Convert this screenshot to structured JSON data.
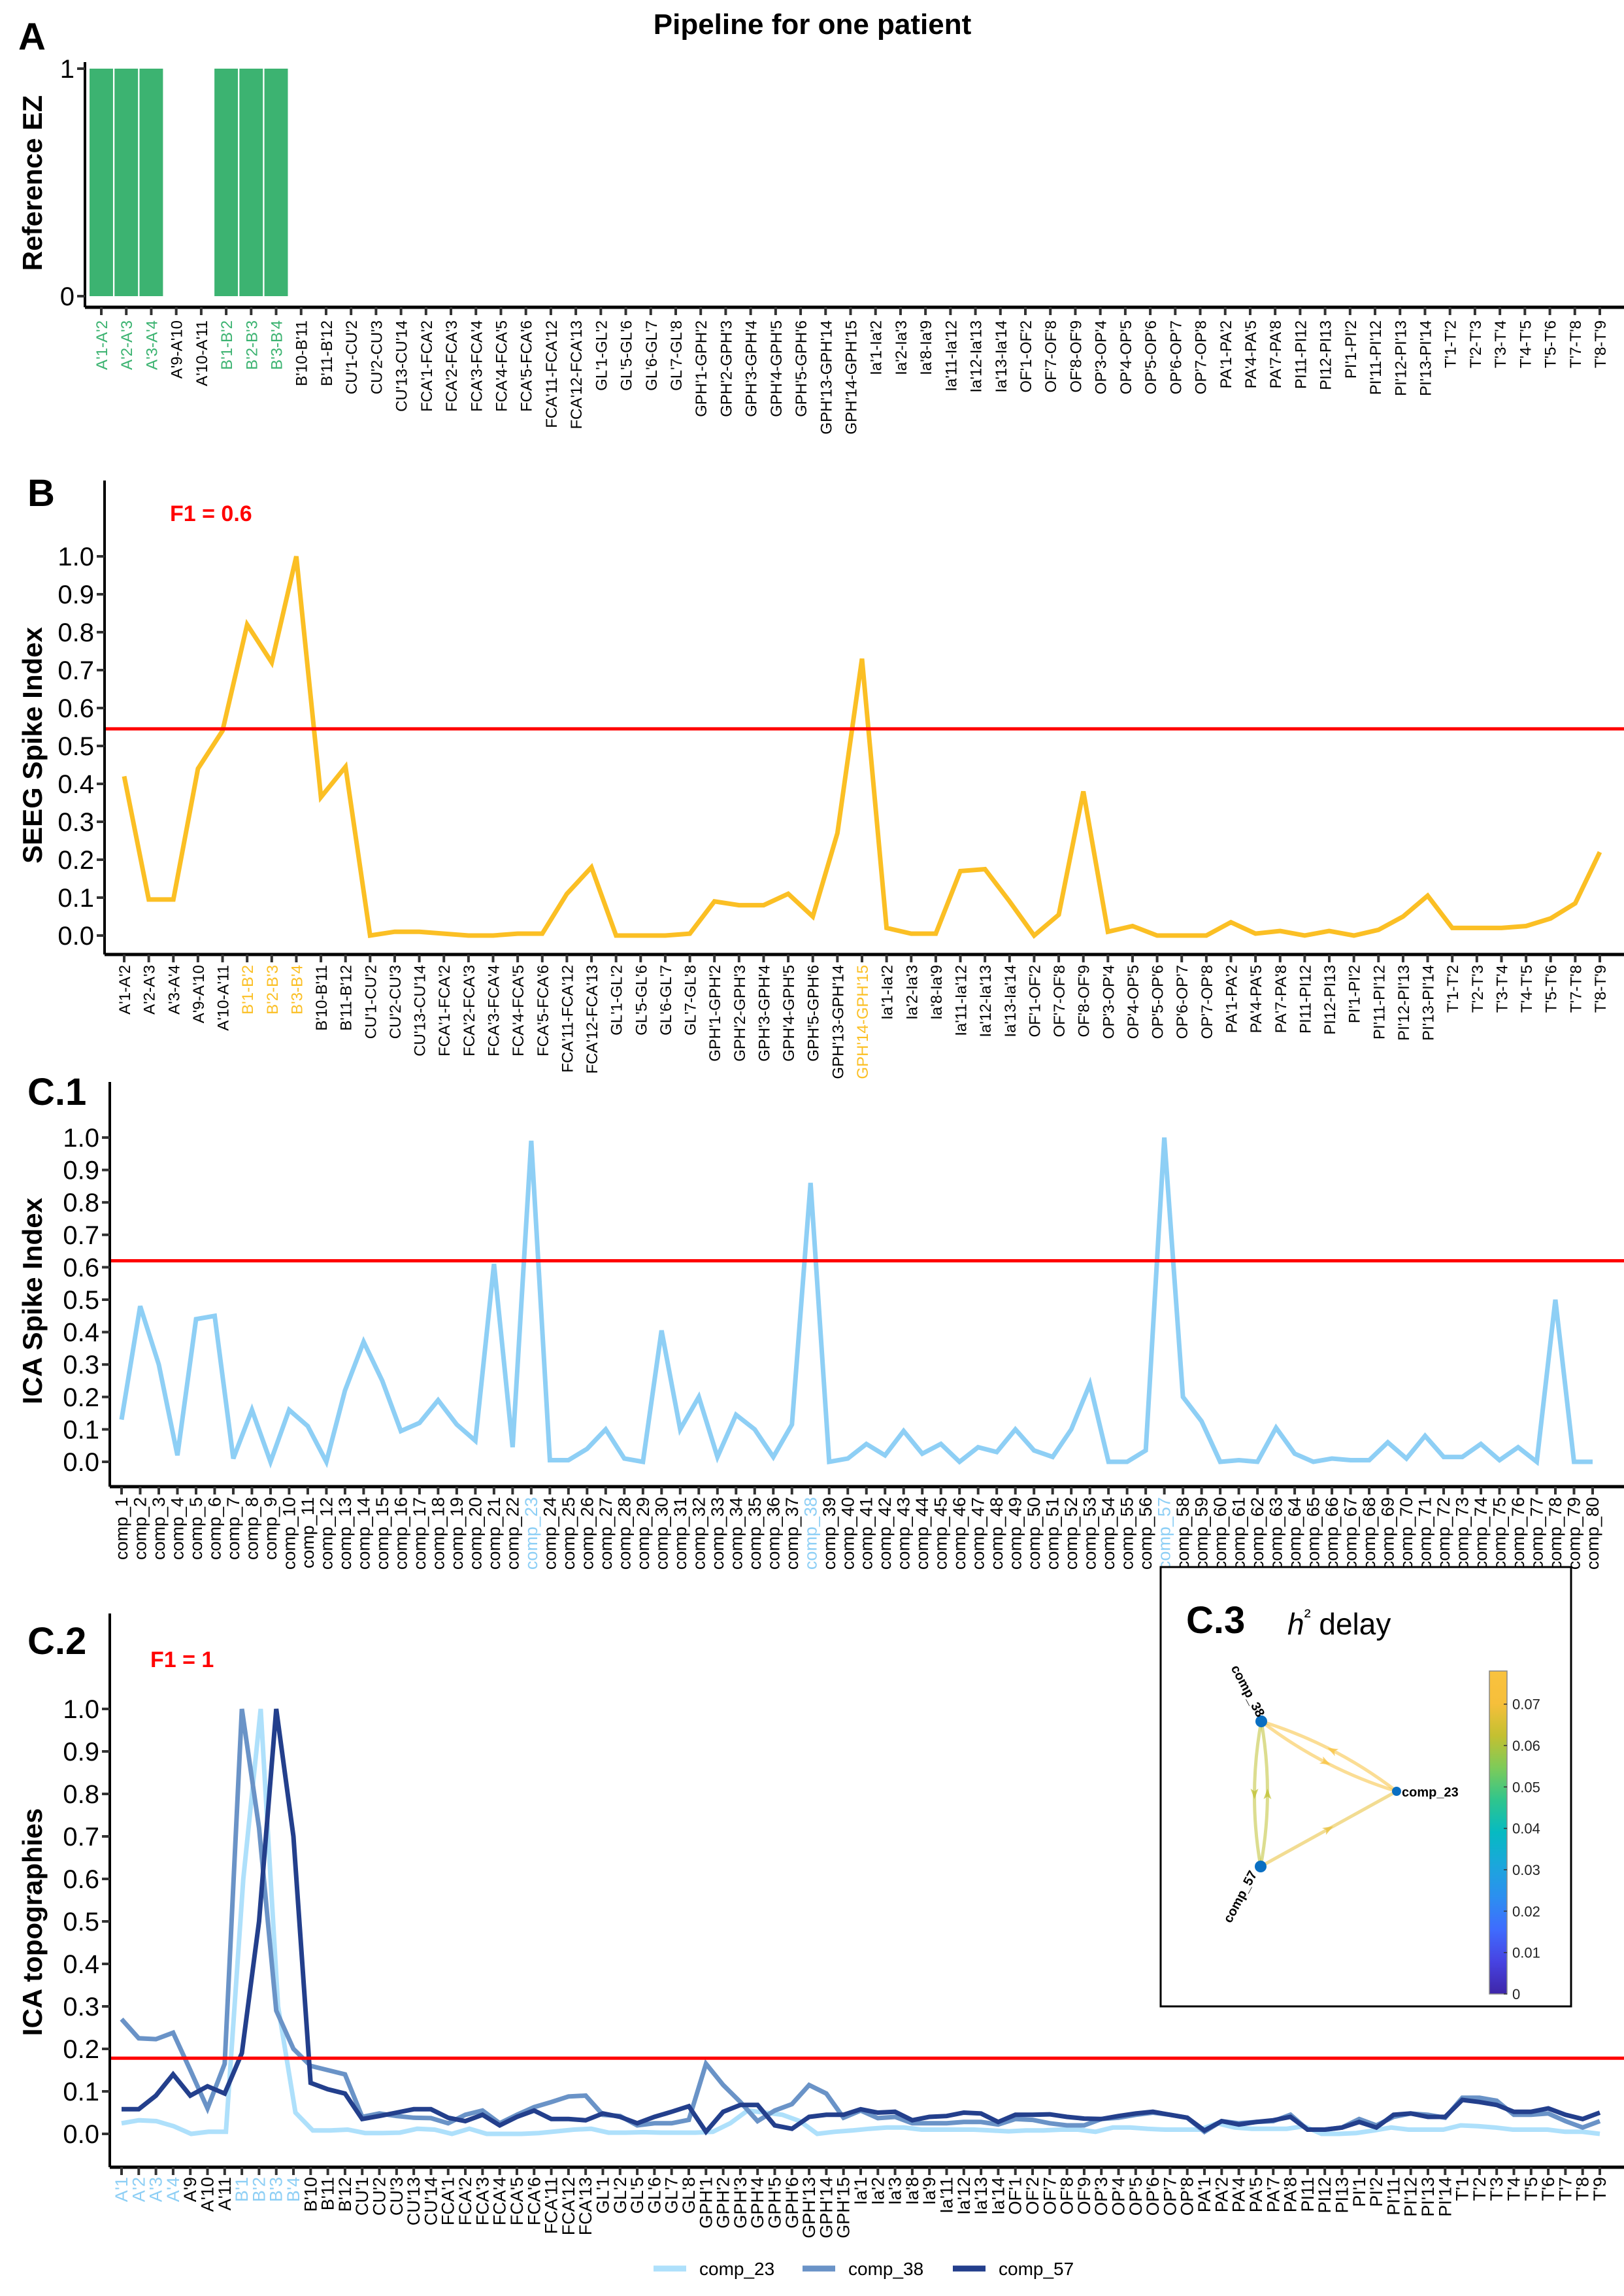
{
  "figure": {
    "title": "Pipeline for one patient",
    "threshold_color": "#ff0000"
  },
  "chart_data": [
    {
      "id": "A",
      "panel_label": "A",
      "type": "bar",
      "title": "",
      "xlabel": "",
      "ylabel": "Reference EZ",
      "ylim": [
        0,
        1
      ],
      "yticks": [
        "0",
        "1"
      ],
      "ytick_values": [
        0,
        1
      ],
      "bar_color": "#3cb371",
      "highlight_color": "#3cb371",
      "categories": [
        "A'1-A'2",
        "A'2-A'3",
        "A'3-A'4",
        "A'9-A'10",
        "A'10-A'11",
        "B'1-B'2",
        "B'2-B'3",
        "B'3-B'4",
        "B'10-B'11",
        "B'11-B'12",
        "CU'1-CU'2",
        "CU'2-CU'3",
        "CU'13-CU'14",
        "FCA'1-FCA'2",
        "FCA'2-FCA'3",
        "FCA'3-FCA'4",
        "FCA'4-FCA'5",
        "FCA'5-FCA'6",
        "FCA'11-FCA'12",
        "FCA'12-FCA'13",
        "GL'1-GL'2",
        "GL'5-GL'6",
        "GL'6-GL'7",
        "GL'7-GL'8",
        "GPH'1-GPH'2",
        "GPH'2-GPH'3",
        "GPH'3-GPH'4",
        "GPH'4-GPH'5",
        "GPH'5-GPH'6",
        "GPH'13-GPH'14",
        "GPH'14-GPH'15",
        "Ia'1-Ia'2",
        "Ia'2-Ia'3",
        "Ia'8-Ia'9",
        "Ia'11-Ia'12",
        "Ia'12-Ia'13",
        "Ia'13-Ia'14",
        "OF'1-OF'2",
        "OF'7-OF'8",
        "OF'8-OF'9",
        "OP'3-OP'4",
        "OP'4-OP'5",
        "OP'5-OP'6",
        "OP'6-OP'7",
        "OP'7-OP'8",
        "PA'1-PA'2",
        "PA'4-PA'5",
        "PA'7-PA'8",
        "PI11-PI12",
        "PI12-PI13",
        "PI'1-PI'2",
        "PI'11-PI'12",
        "PI'12-PI'13",
        "PI'13-PI'14",
        "T'1-T'2",
        "T'2-T'3",
        "T'3-T'4",
        "T'4-T'5",
        "T'5-T'6",
        "T'7-T'8",
        "T'8-T'9"
      ],
      "values": [
        1,
        1,
        1,
        0,
        0,
        1,
        1,
        1,
        0,
        0,
        0,
        0,
        0,
        0,
        0,
        0,
        0,
        0,
        0,
        0,
        0,
        0,
        0,
        0,
        0,
        0,
        0,
        0,
        0,
        0,
        0,
        0,
        0,
        0,
        0,
        0,
        0,
        0,
        0,
        0,
        0,
        0,
        0,
        0,
        0,
        0,
        0,
        0,
        0,
        0,
        0,
        0,
        0,
        0,
        0,
        0,
        0,
        0,
        0,
        0,
        0
      ],
      "highlighted": [
        "A'1-A'2",
        "A'2-A'3",
        "A'3-A'4",
        "B'1-B'2",
        "B'2-B'3",
        "B'3-B'4"
      ]
    },
    {
      "id": "B",
      "panel_label": "B",
      "type": "line",
      "title": "",
      "xlabel": "",
      "ylabel": "SEEG Spike Index",
      "ylim": [
        0,
        1
      ],
      "yticks": [
        "0.0",
        "0.1",
        "0.2",
        "0.3",
        "0.4",
        "0.5",
        "0.6",
        "0.7",
        "0.8",
        "0.9",
        "1.0"
      ],
      "ytick_values": [
        0,
        0.1,
        0.2,
        0.3,
        0.4,
        0.5,
        0.6,
        0.7,
        0.8,
        0.9,
        1.0
      ],
      "annotation": "F1 = 0.6",
      "threshold": 0.545,
      "line_color": "#fbbf24",
      "highlight_color": "#fbbf24",
      "categories": [
        "A'1-A'2",
        "A'2-A'3",
        "A'3-A'4",
        "A'9-A'10",
        "A'10-A'11",
        "B'1-B'2",
        "B'2-B'3",
        "B'3-B'4",
        "B'10-B'11",
        "B'11-B'12",
        "CU'1-CU'2",
        "CU'2-CU'3",
        "CU'13-CU'14",
        "FCA'1-FCA'2",
        "FCA'2-FCA'3",
        "FCA'3-FCA'4",
        "FCA'4-FCA'5",
        "FCA'5-FCA'6",
        "FCA'11-FCA'12",
        "FCA'12-FCA'13",
        "GL'1-GL'2",
        "GL'5-GL'6",
        "GL'6-GL'7",
        "GL'7-GL'8",
        "GPH'1-GPH'2",
        "GPH'2-GPH'3",
        "GPH'3-GPH'4",
        "GPH'4-GPH'5",
        "GPH'5-GPH'6",
        "GPH'13-GPH'14",
        "GPH'14-GPH'15",
        "Ia'1-Ia'2",
        "Ia'2-Ia'3",
        "Ia'8-Ia'9",
        "Ia'11-Ia'12",
        "Ia'12-Ia'13",
        "Ia'13-Ia'14",
        "OF'1-OF'2",
        "OF'7-OF'8",
        "OF'8-OF'9",
        "OP'3-OP'4",
        "OP'4-OP'5",
        "OP'5-OP'6",
        "OP'6-OP'7",
        "OP'7-OP'8",
        "PA'1-PA'2",
        "PA'4-PA'5",
        "PA'7-PA'8",
        "PI11-PI12",
        "PI12-PI13",
        "PI'1-PI'2",
        "PI'11-PI'12",
        "PI'12-PI'13",
        "PI'13-PI'14",
        "T'1-T'2",
        "T'2-T'3",
        "T'3-T'4",
        "T'4-T'5",
        "T'5-T'6",
        "T'7-T'8",
        "T'8-T'9"
      ],
      "values": [
        0.42,
        0.095,
        0.095,
        0.44,
        0.54,
        0.82,
        0.72,
        1.0,
        0.365,
        0.445,
        0.0,
        0.01,
        0.01,
        0.005,
        0.0,
        0.0,
        0.005,
        0.005,
        0.11,
        0.18,
        0.0,
        0.0,
        0.0,
        0.005,
        0.09,
        0.08,
        0.08,
        0.11,
        0.05,
        0.27,
        0.73,
        0.02,
        0.005,
        0.005,
        0.17,
        0.175,
        0.09,
        0.0,
        0.055,
        0.38,
        0.01,
        0.025,
        0.0,
        0.0,
        0.0,
        0.035,
        0.005,
        0.012,
        0.0,
        0.012,
        0.0,
        0.015,
        0.05,
        0.105,
        0.02,
        0.02,
        0.02,
        0.025,
        0.045,
        0.085,
        0.22
      ],
      "highlighted": [
        "B'1-B'2",
        "B'2-B'3",
        "B'3-B'4",
        "GPH'14-GPH'15"
      ]
    },
    {
      "id": "C1",
      "panel_label": "C.1",
      "type": "line",
      "title": "",
      "xlabel": "",
      "ylabel": "ICA Spike Index",
      "ylim": [
        0,
        1
      ],
      "yticks": [
        "0.0",
        "0.1",
        "0.2",
        "0.3",
        "0.4",
        "0.5",
        "0.6",
        "0.7",
        "0.8",
        "0.9",
        "1.0"
      ],
      "ytick_values": [
        0,
        0.1,
        0.2,
        0.3,
        0.4,
        0.5,
        0.6,
        0.7,
        0.8,
        0.9,
        1.0
      ],
      "threshold": 0.62,
      "line_color": "#8ecff5",
      "highlight_color": "#8ecff5",
      "categories": [
        "comp_1",
        "comp_2",
        "comp_3",
        "comp_4",
        "comp_5",
        "comp_6",
        "comp_7",
        "comp_8",
        "comp_9",
        "comp_10",
        "comp_11",
        "comp_12",
        "comp_13",
        "comp_14",
        "comp_15",
        "comp_16",
        "comp_17",
        "comp_18",
        "comp_19",
        "comp_20",
        "comp_21",
        "comp_22",
        "comp_23",
        "comp_24",
        "comp_25",
        "comp_26",
        "comp_27",
        "comp_28",
        "comp_29",
        "comp_30",
        "comp_31",
        "comp_32",
        "comp_33",
        "comp_34",
        "comp_35",
        "comp_36",
        "comp_37",
        "comp_38",
        "comp_39",
        "comp_40",
        "comp_41",
        "comp_42",
        "comp_43",
        "comp_44",
        "comp_45",
        "comp_46",
        "comp_47",
        "comp_48",
        "comp_49",
        "comp_50",
        "comp_51",
        "comp_52",
        "comp_53",
        "comp_54",
        "comp_55",
        "comp_56",
        "comp_57",
        "comp_58",
        "comp_59",
        "comp_60",
        "comp_61",
        "comp_62",
        "comp_63",
        "comp_64",
        "comp_65",
        "comp_66",
        "comp_67",
        "comp_68",
        "comp_69",
        "comp_70",
        "comp_71",
        "comp_72",
        "comp_73",
        "comp_74",
        "comp_75",
        "comp_76",
        "comp_77",
        "comp_78",
        "comp_79",
        "comp_80"
      ],
      "values": [
        0.13,
        0.48,
        0.3,
        0.02,
        0.44,
        0.45,
        0.01,
        0.16,
        0.0,
        0.16,
        0.11,
        0.0,
        0.22,
        0.37,
        0.25,
        0.095,
        0.12,
        0.19,
        0.115,
        0.065,
        0.61,
        0.045,
        0.99,
        0.005,
        0.005,
        0.04,
        0.1,
        0.01,
        0.0,
        0.405,
        0.1,
        0.2,
        0.015,
        0.145,
        0.1,
        0.015,
        0.115,
        0.86,
        0.0,
        0.01,
        0.055,
        0.02,
        0.095,
        0.025,
        0.055,
        0.0,
        0.045,
        0.03,
        0.1,
        0.035,
        0.015,
        0.1,
        0.24,
        0.0,
        0.0,
        0.035,
        1.0,
        0.2,
        0.125,
        0.0,
        0.005,
        0.0,
        0.105,
        0.025,
        0.0,
        0.01,
        0.005,
        0.005,
        0.06,
        0.01,
        0.08,
        0.015,
        0.015,
        0.055,
        0.005,
        0.045,
        0.0,
        0.5,
        0.0,
        0.0
      ],
      "highlighted": [
        "comp_23",
        "comp_38",
        "comp_57"
      ]
    },
    {
      "id": "C2",
      "panel_label": "C.2",
      "type": "line",
      "title": "",
      "xlabel": "",
      "ylabel": "ICA topographies",
      "ylim": [
        0,
        1
      ],
      "yticks": [
        "0.0",
        "0.1",
        "0.2",
        "0.3",
        "0.4",
        "0.5",
        "0.6",
        "0.7",
        "0.8",
        "0.9",
        "1.0"
      ],
      "ytick_values": [
        0,
        0.1,
        0.2,
        0.3,
        0.4,
        0.5,
        0.6,
        0.7,
        0.8,
        0.9,
        1.0
      ],
      "annotation": "F1 = 1",
      "threshold": 0.178,
      "highlight_color": "#8ecff5",
      "legend_position": "bottom",
      "categories": [
        "A'1",
        "A'2",
        "A'3",
        "A'4",
        "A'9",
        "A'10",
        "A'11",
        "B'1",
        "B'2",
        "B'3",
        "B'4",
        "B'10",
        "B'11",
        "B'12",
        "CU'1",
        "CU'2",
        "CU'3",
        "CU'13",
        "CU'14",
        "FCA'1",
        "FCA'2",
        "FCA'3",
        "FCA'4",
        "FCA'5",
        "FCA'6",
        "FCA'11",
        "FCA'12",
        "FCA'13",
        "GL'1",
        "GL'2",
        "GL'5",
        "GL'6",
        "GL'7",
        "GL'8",
        "GPH'1",
        "GPH'2",
        "GPH'3",
        "GPH'4",
        "GPH'5",
        "GPH'6",
        "GPH'13",
        "GPH'14",
        "GPH'15",
        "Ia'1",
        "Ia'2",
        "Ia'3",
        "Ia'8",
        "Ia'9",
        "Ia'11",
        "Ia'12",
        "Ia'13",
        "Ia'14",
        "OF'1",
        "OF'2",
        "OF'7",
        "OF'8",
        "OF'9",
        "OP'3",
        "OP'4",
        "OP'5",
        "OP'6",
        "OP'7",
        "OP'8",
        "PA'1",
        "PA'2",
        "PA'4",
        "PA'5",
        "PA'7",
        "PA'8",
        "PI11",
        "PI12",
        "PI13",
        "PI'1",
        "PI'2",
        "PI'11",
        "PI'12",
        "PI'13",
        "PI'14",
        "T'1",
        "T'2",
        "T'3",
        "T'4",
        "T'5",
        "T'6",
        "T'7",
        "T'8",
        "T'9"
      ],
      "highlighted": [
        "A'1",
        "A'2",
        "A'3",
        "A'4",
        "B'1",
        "B'2",
        "B'3",
        "B'4"
      ],
      "series": [
        {
          "name": "comp_23",
          "color": "#aee0fb",
          "values": [
            0.025,
            0.032,
            0.03,
            0.018,
            0.0,
            0.005,
            0.005,
            0.6,
            1.0,
            0.3,
            0.05,
            0.008,
            0.008,
            0.01,
            0.002,
            0.002,
            0.003,
            0.012,
            0.01,
            0.0,
            0.012,
            0.0,
            0.0,
            0.0,
            0.002,
            0.006,
            0.01,
            0.012,
            0.003,
            0.003,
            0.004,
            0.003,
            0.003,
            0.003,
            0.005,
            0.025,
            0.055,
            0.05,
            0.045,
            0.03,
            0.0,
            0.005,
            0.008,
            0.012,
            0.015,
            0.015,
            0.01,
            0.01,
            0.01,
            0.01,
            0.008,
            0.006,
            0.008,
            0.008,
            0.01,
            0.01,
            0.005,
            0.015,
            0.015,
            0.012,
            0.01,
            0.01,
            0.01,
            0.025,
            0.015,
            0.012,
            0.012,
            0.012,
            0.018,
            0.0,
            0.0,
            0.002,
            0.008,
            0.015,
            0.01,
            0.01,
            0.01,
            0.02,
            0.018,
            0.015,
            0.01,
            0.01,
            0.01,
            0.005,
            0.005,
            0.0
          ]
        },
        {
          "name": "comp_38",
          "color": "#6a93c7",
          "values": [
            0.27,
            0.225,
            0.223,
            0.238,
            0.15,
            0.06,
            0.165,
            1.0,
            0.72,
            0.29,
            0.2,
            0.16,
            0.15,
            0.14,
            0.04,
            0.048,
            0.042,
            0.038,
            0.037,
            0.025,
            0.045,
            0.055,
            0.025,
            0.045,
            0.063,
            0.075,
            0.088,
            0.09,
            0.045,
            0.042,
            0.02,
            0.025,
            0.025,
            0.033,
            0.165,
            0.115,
            0.075,
            0.03,
            0.055,
            0.07,
            0.115,
            0.095,
            0.038,
            0.055,
            0.037,
            0.04,
            0.025,
            0.025,
            0.025,
            0.028,
            0.028,
            0.022,
            0.035,
            0.033,
            0.025,
            0.02,
            0.02,
            0.035,
            0.038,
            0.045,
            0.05,
            0.045,
            0.038,
            0.005,
            0.03,
            0.025,
            0.028,
            0.03,
            0.045,
            0.01,
            0.01,
            0.015,
            0.035,
            0.02,
            0.04,
            0.048,
            0.045,
            0.038,
            0.085,
            0.085,
            0.078,
            0.045,
            0.045,
            0.048,
            0.03,
            0.015,
            0.03
          ]
        },
        {
          "name": "comp_57",
          "color": "#233f8c",
          "values": [
            0.058,
            0.058,
            0.09,
            0.14,
            0.09,
            0.112,
            0.095,
            0.19,
            0.5,
            1.0,
            0.7,
            0.12,
            0.105,
            0.095,
            0.035,
            0.042,
            0.05,
            0.058,
            0.058,
            0.038,
            0.03,
            0.045,
            0.02,
            0.04,
            0.055,
            0.035,
            0.035,
            0.032,
            0.048,
            0.04,
            0.025,
            0.04,
            0.052,
            0.065,
            0.005,
            0.052,
            0.068,
            0.068,
            0.02,
            0.012,
            0.04,
            0.045,
            0.045,
            0.058,
            0.05,
            0.052,
            0.032,
            0.04,
            0.042,
            0.05,
            0.048,
            0.028,
            0.045,
            0.045,
            0.046,
            0.04,
            0.036,
            0.035,
            0.042,
            0.048,
            0.052,
            0.045,
            0.038,
            0.008,
            0.03,
            0.022,
            0.028,
            0.032,
            0.04,
            0.01,
            0.01,
            0.015,
            0.028,
            0.015,
            0.045,
            0.048,
            0.04,
            0.04,
            0.08,
            0.075,
            0.068,
            0.052,
            0.052,
            0.06,
            0.045,
            0.035,
            0.05
          ]
        }
      ]
    },
    {
      "id": "C3",
      "panel_label": "C.3",
      "type": "network",
      "title": "h² delay",
      "title_symbol": "h",
      "title_superscript": "²",
      "title_rest": " delay",
      "colorbar": {
        "min": 0,
        "max": 0.078,
        "ticks": [
          "0",
          "0.01",
          "0.02",
          "0.03",
          "0.04",
          "0.05",
          "0.06",
          "0.07"
        ],
        "tick_values": [
          0,
          0.01,
          0.02,
          0.03,
          0.04,
          0.05,
          0.06,
          0.07
        ],
        "colormap": "parula",
        "stops": [
          "#3e26a8",
          "#4743e2",
          "#3f6cfe",
          "#2c8ff0",
          "#1ba7db",
          "#06bac2",
          "#2fc58d",
          "#7dcb59",
          "#c4c031",
          "#f6bf3b",
          "#f9c23e"
        ]
      },
      "nodes": [
        {
          "name": "comp_38",
          "node_color": "#0a6fc2"
        },
        {
          "name": "comp_23",
          "node_color": "#0a6fc2"
        },
        {
          "name": "comp_57",
          "node_color": "#0a6fc2"
        }
      ],
      "edges": [
        {
          "from": "comp_38",
          "to": "comp_23",
          "delay": 0.076
        },
        {
          "from": "comp_23",
          "to": "comp_38",
          "delay": 0.076
        },
        {
          "from": "comp_38",
          "to": "comp_57",
          "delay": 0.062
        },
        {
          "from": "comp_57",
          "to": "comp_38",
          "delay": 0.062
        },
        {
          "from": "comp_57",
          "to": "comp_23",
          "delay": 0.068
        }
      ]
    }
  ]
}
